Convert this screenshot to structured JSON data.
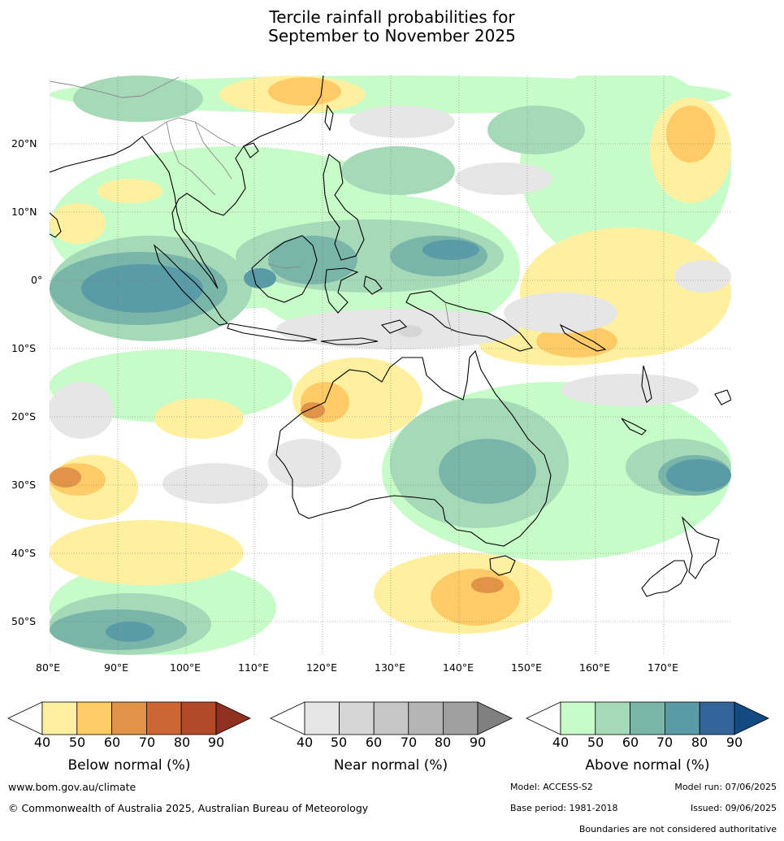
{
  "title_line1": "Tercile rainfall probabilities for",
  "title_line2": "September to November 2025",
  "map": {
    "lat_labels": [
      "20°N",
      "10°N",
      "0°",
      "10°S",
      "20°S",
      "30°S",
      "40°S",
      "50°S"
    ],
    "lon_labels": [
      "80°E",
      "90°E",
      "100°E",
      "110°E",
      "120°E",
      "130°E",
      "140°E",
      "150°E",
      "160°E",
      "170°E"
    ],
    "colors": {
      "below": [
        "#fff0a0",
        "#fecb66",
        "#e19448",
        "#cc6634",
        "#b04a28",
        "#8f3020"
      ],
      "near": [
        "#e6e6e6",
        "#d6d6d6",
        "#c6c6c6",
        "#b4b4b4",
        "#a0a0a0",
        "#808080"
      ],
      "above": [
        "#c7fcc8",
        "#a6d9b8",
        "#7ab5aa",
        "#5a9ba8",
        "#34659a",
        "#124a84"
      ]
    }
  },
  "colorbars": [
    {
      "key": "below",
      "title": "Below normal (%)",
      "ticks": [
        "40",
        "50",
        "60",
        "70",
        "80",
        "90"
      ]
    },
    {
      "key": "near",
      "title": "Near normal (%)",
      "ticks": [
        "40",
        "50",
        "60",
        "70",
        "80",
        "90"
      ]
    },
    {
      "key": "above",
      "title": "Above normal (%)",
      "ticks": [
        "40",
        "50",
        "60",
        "70",
        "80",
        "90"
      ]
    }
  ],
  "footer": {
    "url": "www.bom.gov.au/climate",
    "copyright": "© Commonwealth of Australia 2025, Australian Bureau of Meteorology",
    "model": "Model: ACCESS-S2",
    "model_run": "Model run: 07/06/2025",
    "base_period": "Base period: 1981-2018",
    "issued": "Issued: 09/06/2025",
    "disclaimer": "Boundaries are not considered authoritative"
  }
}
